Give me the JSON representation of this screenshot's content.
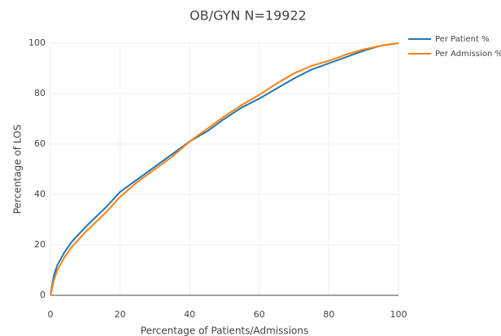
{
  "chart_data": {
    "type": "line",
    "title": "OB/GYN N=19922",
    "x_label": "Percentage of Patients/Admissions",
    "y_label": "Percentage of LOS",
    "x": [
      0,
      1,
      2,
      4,
      6,
      8,
      10,
      13,
      16,
      20,
      25,
      30,
      35,
      40,
      45,
      50,
      55,
      60,
      65,
      70,
      75,
      80,
      85,
      90,
      95,
      100
    ],
    "series": [
      {
        "name": "Per Patient %",
        "color": "#1f77b4",
        "values": [
          0,
          8,
          12,
          17,
          21,
          24,
          27,
          31,
          35,
          41,
          46,
          51,
          56,
          61,
          65,
          70,
          74.5,
          78,
          82,
          86,
          89.5,
          92,
          94.5,
          97,
          99,
          100
        ]
      },
      {
        "name": "Per Admission %",
        "color": "#ff7f0e",
        "values": [
          0,
          6,
          10,
          15,
          19,
          22,
          25,
          29,
          33,
          39,
          45,
          50,
          55,
          61,
          66,
          71,
          75.5,
          79.5,
          84,
          88,
          91,
          93,
          95.5,
          97.5,
          99,
          100
        ]
      }
    ],
    "xlim": [
      0,
      100
    ],
    "ylim": [
      0,
      100
    ],
    "xticks": [
      0,
      20,
      40,
      60,
      80,
      100
    ],
    "yticks": [
      0,
      20,
      40,
      60,
      80,
      100
    ],
    "grid": true
  }
}
